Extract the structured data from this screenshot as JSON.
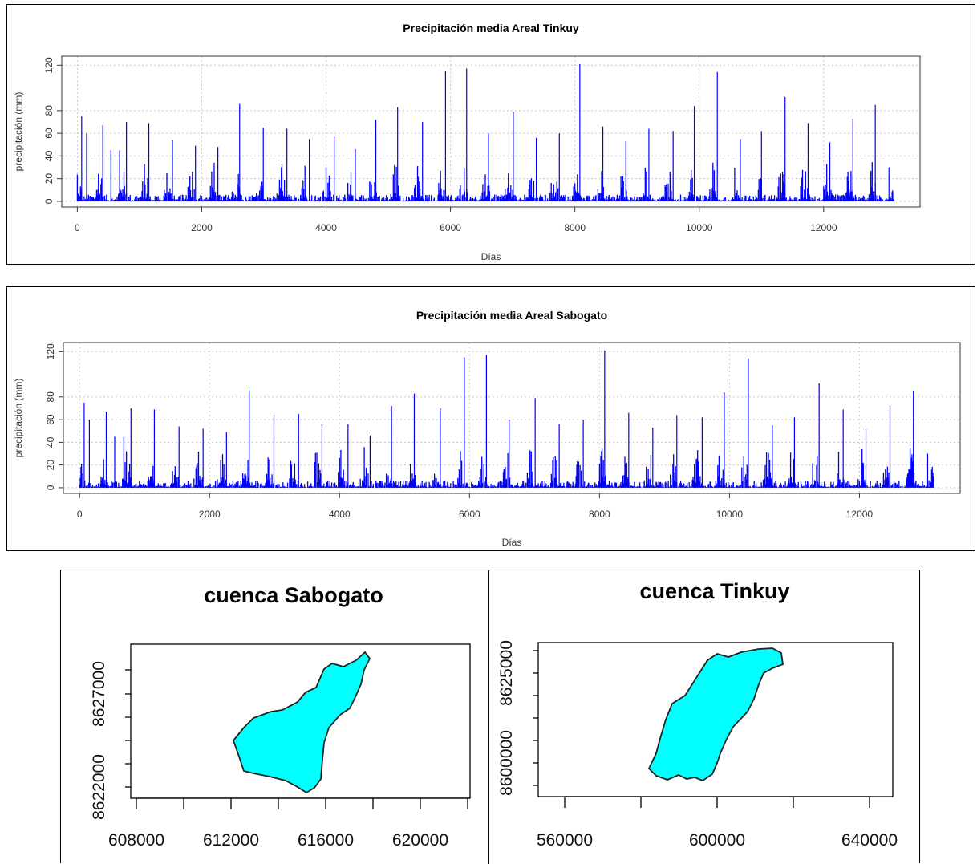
{
  "colors": {
    "bars": "#0000ff",
    "grid": "#c8c8c8",
    "basin_fill": "#00ffff",
    "basin_stroke": "#222222"
  },
  "chart_data": [
    {
      "type": "bar",
      "title": "Precipitación media Areal Tinkuy",
      "xlabel": "Días",
      "ylabel": "precipitación (mm)",
      "xlim": [
        0,
        13200
      ],
      "ylim": [
        0,
        125
      ],
      "xticks": [
        "0",
        "2000",
        "4000",
        "6000",
        "8000",
        "10000",
        "12000"
      ],
      "yticks": [
        "0",
        "20",
        "40",
        "60",
        "80",
        "120"
      ],
      "grid": true,
      "n_days": 13150,
      "peaks": [
        {
          "x": 70,
          "y": 75
        },
        {
          "x": 150,
          "y": 60
        },
        {
          "x": 410,
          "y": 67
        },
        {
          "x": 540,
          "y": 45
        },
        {
          "x": 680,
          "y": 45
        },
        {
          "x": 790,
          "y": 70
        },
        {
          "x": 1150,
          "y": 69
        },
        {
          "x": 1530,
          "y": 54
        },
        {
          "x": 1900,
          "y": 49
        },
        {
          "x": 2260,
          "y": 48
        },
        {
          "x": 2610,
          "y": 86
        },
        {
          "x": 2990,
          "y": 65
        },
        {
          "x": 3370,
          "y": 64
        },
        {
          "x": 3730,
          "y": 55
        },
        {
          "x": 4130,
          "y": 57
        },
        {
          "x": 4470,
          "y": 46
        },
        {
          "x": 4800,
          "y": 72
        },
        {
          "x": 5150,
          "y": 83
        },
        {
          "x": 5550,
          "y": 70
        },
        {
          "x": 5920,
          "y": 115
        },
        {
          "x": 6260,
          "y": 117
        },
        {
          "x": 6610,
          "y": 60
        },
        {
          "x": 7010,
          "y": 79
        },
        {
          "x": 7380,
          "y": 56
        },
        {
          "x": 7750,
          "y": 60
        },
        {
          "x": 8080,
          "y": 121
        },
        {
          "x": 8450,
          "y": 66
        },
        {
          "x": 8820,
          "y": 53
        },
        {
          "x": 9190,
          "y": 64
        },
        {
          "x": 9580,
          "y": 62
        },
        {
          "x": 9920,
          "y": 84
        },
        {
          "x": 10290,
          "y": 114
        },
        {
          "x": 10660,
          "y": 55
        },
        {
          "x": 11000,
          "y": 62
        },
        {
          "x": 11380,
          "y": 92
        },
        {
          "x": 11750,
          "y": 69
        },
        {
          "x": 12100,
          "y": 52
        },
        {
          "x": 12470,
          "y": 73
        },
        {
          "x": 12830,
          "y": 85
        },
        {
          "x": 13050,
          "y": 30
        }
      ]
    },
    {
      "type": "bar",
      "title": "Precipitación media Areal Sabogato",
      "xlabel": "Días",
      "ylabel": "precipitación (mm)",
      "xlim": [
        0,
        13200
      ],
      "ylim": [
        0,
        125
      ],
      "xticks": [
        "0",
        "2000",
        "4000",
        "6000",
        "8000",
        "10000",
        "12000"
      ],
      "yticks": [
        "0",
        "20",
        "40",
        "60",
        "80",
        "120"
      ],
      "grid": true,
      "n_days": 13150,
      "peaks": [
        {
          "x": 70,
          "y": 75
        },
        {
          "x": 150,
          "y": 60
        },
        {
          "x": 410,
          "y": 67
        },
        {
          "x": 540,
          "y": 45
        },
        {
          "x": 680,
          "y": 45
        },
        {
          "x": 790,
          "y": 70
        },
        {
          "x": 1150,
          "y": 69
        },
        {
          "x": 1530,
          "y": 54
        },
        {
          "x": 1900,
          "y": 52
        },
        {
          "x": 2260,
          "y": 49
        },
        {
          "x": 2610,
          "y": 86
        },
        {
          "x": 2990,
          "y": 64
        },
        {
          "x": 3370,
          "y": 65
        },
        {
          "x": 3730,
          "y": 56
        },
        {
          "x": 4130,
          "y": 56
        },
        {
          "x": 4470,
          "y": 46
        },
        {
          "x": 4800,
          "y": 72
        },
        {
          "x": 5150,
          "y": 83
        },
        {
          "x": 5550,
          "y": 70
        },
        {
          "x": 5920,
          "y": 115
        },
        {
          "x": 6260,
          "y": 117
        },
        {
          "x": 6610,
          "y": 60
        },
        {
          "x": 7010,
          "y": 79
        },
        {
          "x": 7380,
          "y": 56
        },
        {
          "x": 7750,
          "y": 60
        },
        {
          "x": 8080,
          "y": 121
        },
        {
          "x": 8450,
          "y": 66
        },
        {
          "x": 8820,
          "y": 53
        },
        {
          "x": 9190,
          "y": 64
        },
        {
          "x": 9580,
          "y": 62
        },
        {
          "x": 9920,
          "y": 84
        },
        {
          "x": 10290,
          "y": 114
        },
        {
          "x": 10660,
          "y": 55
        },
        {
          "x": 11000,
          "y": 62
        },
        {
          "x": 11380,
          "y": 92
        },
        {
          "x": 11750,
          "y": 69
        },
        {
          "x": 12100,
          "y": 52
        },
        {
          "x": 12470,
          "y": 73
        },
        {
          "x": 12830,
          "y": 85
        },
        {
          "x": 13050,
          "y": 30
        }
      ]
    }
  ],
  "maps": {
    "sabogato": {
      "title": "cuenca Sabogato",
      "xticks": [
        "608000",
        "612000",
        "616000",
        "620000"
      ],
      "yticks": [
        "8622000",
        "8627000"
      ]
    },
    "tinkuy": {
      "title": "cuenca Tinkuy",
      "xticks": [
        "560000",
        "600000",
        "640000"
      ],
      "yticks": [
        "8600000",
        "8625000"
      ]
    }
  }
}
